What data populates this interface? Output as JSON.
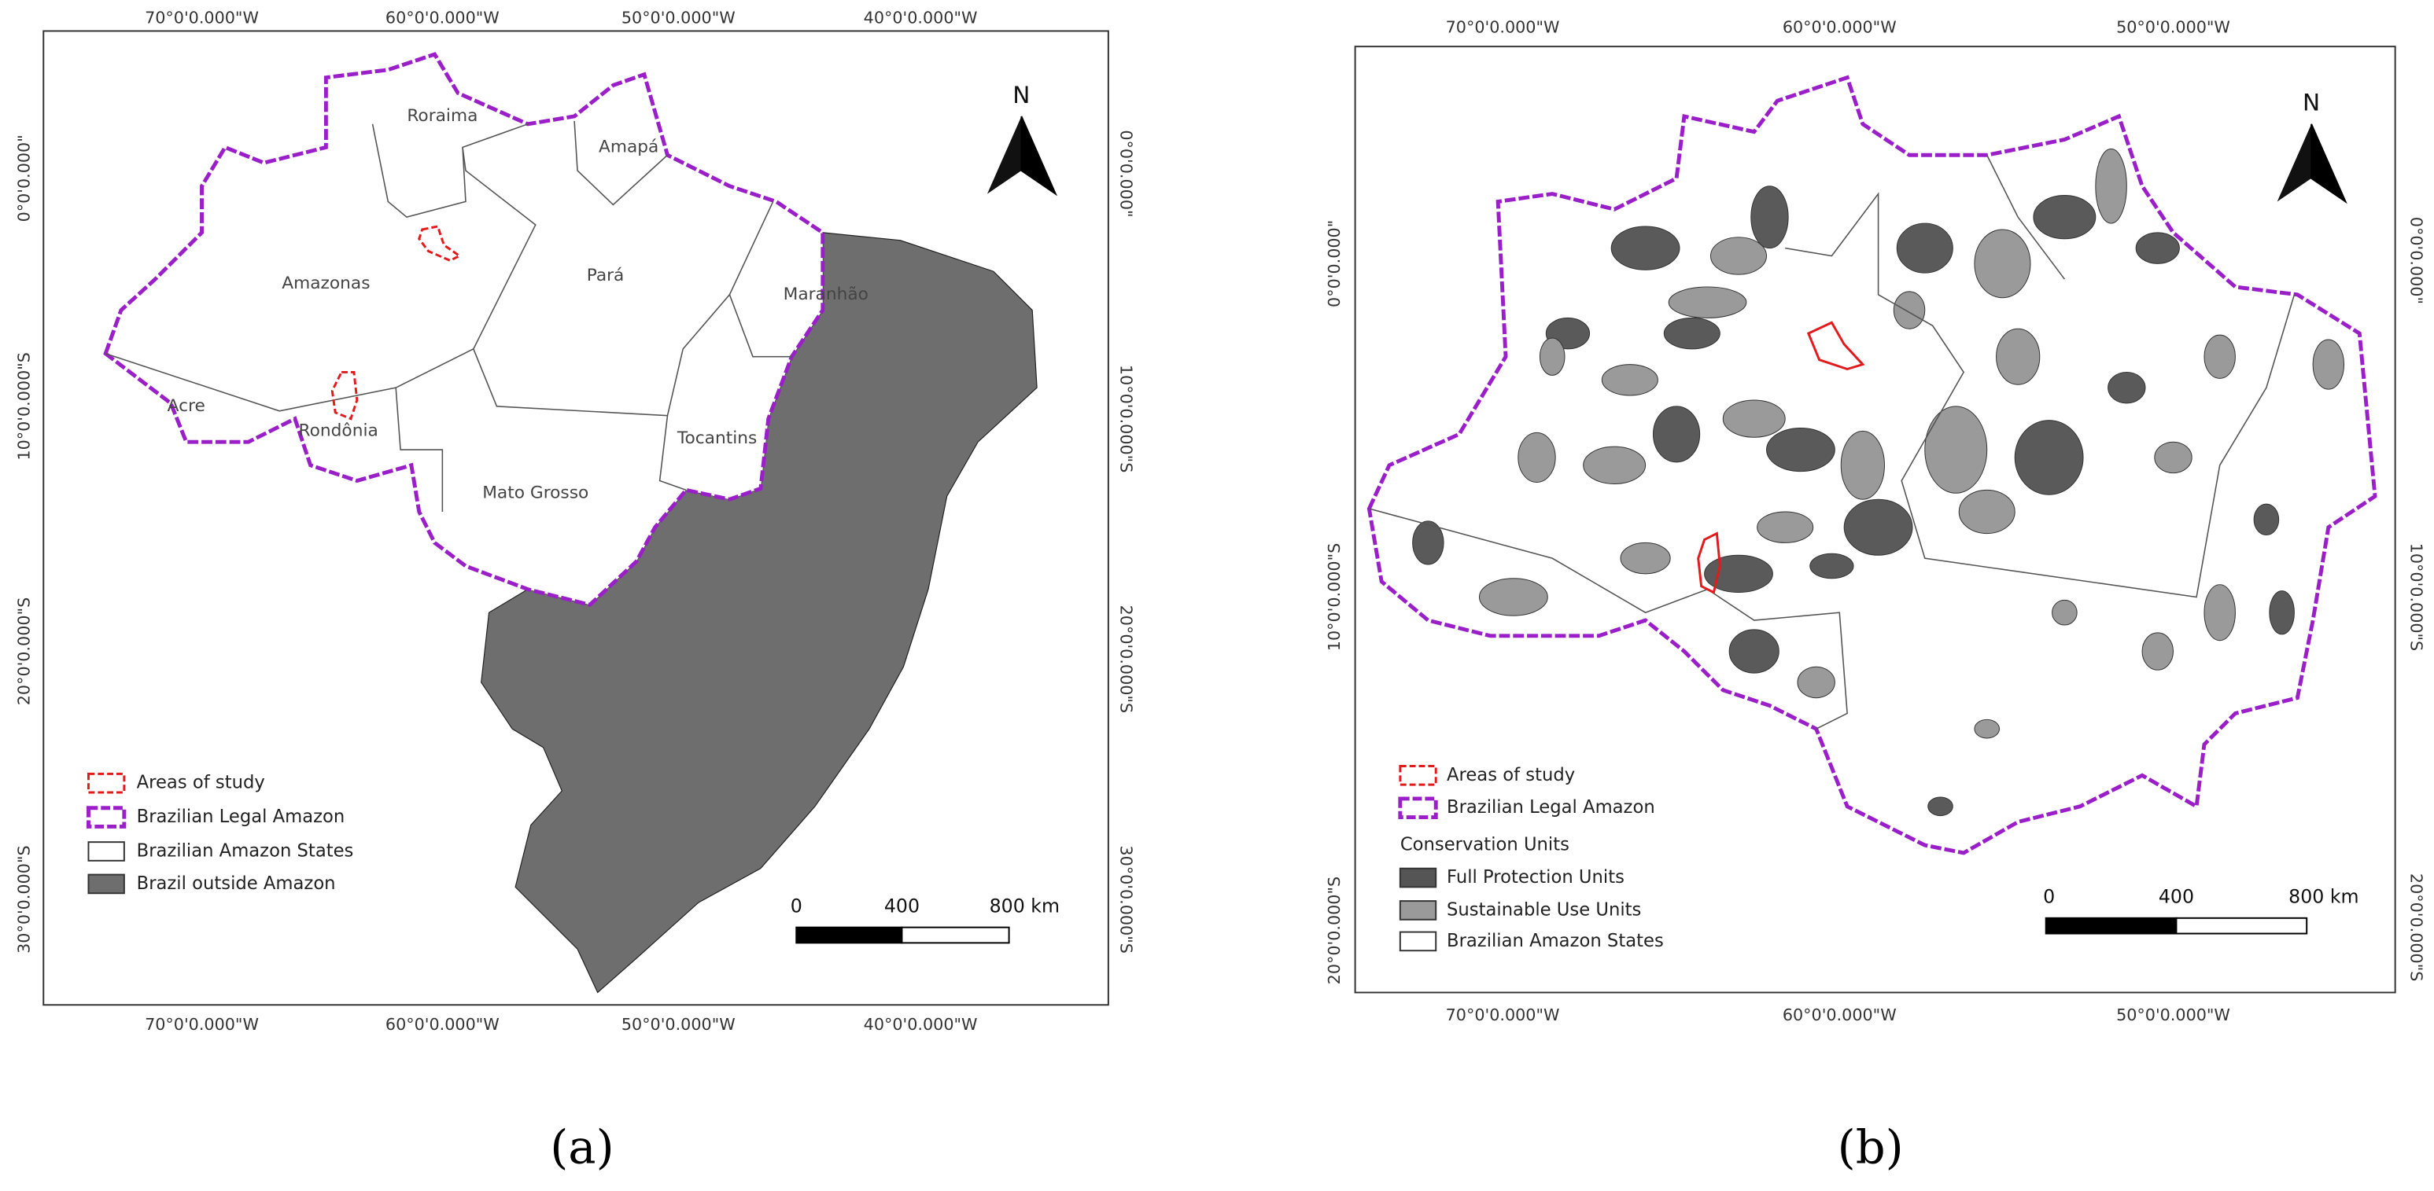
{
  "panel_a": {
    "top_axis": [
      "70°0'0.000\"W",
      "60°0'0.000\"W",
      "50°0'0.000\"W",
      "40°0'0.000\"W"
    ],
    "bottom_axis": [
      "70°0'0.000\"W",
      "60°0'0.000\"W",
      "50°0'0.000\"W",
      "40°0'0.000\"W"
    ],
    "left_axis": [
      "0°0'0.000\"",
      "10°0'0.000\"S",
      "20°0'0.000\"S",
      "30°0'0.000\"S"
    ],
    "right_axis": [
      "0°0'0.000\"",
      "10°0'0.000\"S",
      "20°0'0.000\"S",
      "30°0'0.000\"S"
    ],
    "north": "N",
    "states": [
      "Roraima",
      "Amapá",
      "Amazonas",
      "Pará",
      "Maranhão",
      "Acre",
      "Rondônia",
      "Tocantins",
      "Mato Grosso"
    ],
    "legend": [
      "Areas of study",
      "Brazilian Legal Amazon",
      "Brazilian Amazon States",
      "Brazil outside Amazon"
    ],
    "scale_bar": [
      "0",
      "400",
      "800 km"
    ],
    "caption": "(a)"
  },
  "panel_b": {
    "top_axis": [
      "70°0'0.000\"W",
      "60°0'0.000\"W",
      "50°0'0.000\"W"
    ],
    "bottom_axis": [
      "70°0'0.000\"W",
      "60°0'0.000\"W",
      "50°0'0.000\"W"
    ],
    "left_axis": [
      "0°0'0.000\"",
      "10°0'0.000\"S",
      "20°0'0.000\"S"
    ],
    "right_axis": [
      "0°0'0.000\"",
      "10°0'0.000\"S",
      "20°0'0.000\"S"
    ],
    "north": "N",
    "legend": [
      "Areas of study",
      "Brazilian Legal Amazon"
    ],
    "legend_group_title": "Conservation Units",
    "legend_group": [
      "Full Protection Units",
      "Sustainable Use Units",
      "Brazilian Amazon States"
    ],
    "scale_bar": [
      "0",
      "400",
      "800 km"
    ],
    "caption": "(b)"
  }
}
